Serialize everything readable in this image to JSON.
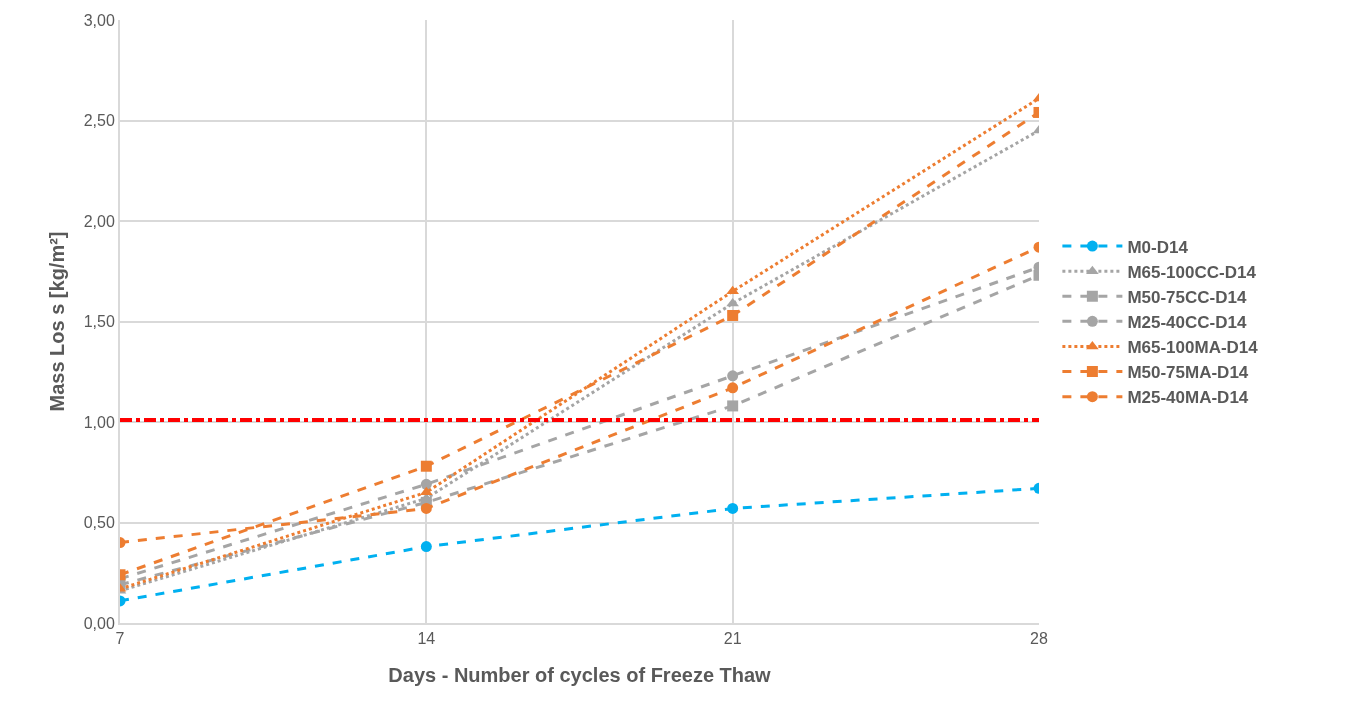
{
  "chart_data": {
    "type": "line",
    "xlabel": "Days - Number of cycles of Freeze Thaw",
    "ylabel": "Mass Los s [kg/m²]",
    "x": [
      7,
      14,
      21,
      28
    ],
    "series": [
      {
        "name": "M0-D14",
        "color": "#00b0f0",
        "marker": "circle",
        "line_style": "dashed",
        "values": [
          0.11,
          0.38,
          0.57,
          0.67
        ]
      },
      {
        "name": "M65-100CC-D14",
        "color": "#a5a5a5",
        "marker": "triangle",
        "line_style": "dotted",
        "values": [
          0.16,
          0.62,
          1.59,
          2.45
        ]
      },
      {
        "name": "M50-75CC-D14",
        "color": "#a5a5a5",
        "marker": "square",
        "line_style": "dashed",
        "values": [
          0.19,
          0.6,
          1.08,
          1.73
        ]
      },
      {
        "name": "M25-40CC-D14",
        "color": "#a5a5a5",
        "marker": "circle",
        "line_style": "dashed",
        "values": [
          0.22,
          0.69,
          1.23,
          1.77
        ]
      },
      {
        "name": "M65-100MA-D14",
        "color": "#ed7d31",
        "marker": "triangle",
        "line_style": "dotted",
        "values": [
          0.17,
          0.65,
          1.65,
          2.61
        ]
      },
      {
        "name": "M50-75MA-D14",
        "color": "#ed7d31",
        "marker": "square",
        "line_style": "dashed",
        "values": [
          0.24,
          0.78,
          1.53,
          2.54
        ]
      },
      {
        "name": "M25-40MA-D14",
        "color": "#ed7d31",
        "marker": "circle",
        "line_style": "dashed",
        "values": [
          0.4,
          0.57,
          1.17,
          1.87
        ]
      }
    ],
    "xlim": [
      7,
      28
    ],
    "xticks": [
      7,
      14,
      21,
      28
    ],
    "ylim": [
      0,
      3
    ],
    "yticks": [
      {
        "value": 0,
        "label": "0,00"
      },
      {
        "value": 0.5,
        "label": "0,50"
      },
      {
        "value": 1,
        "label": "1,00"
      },
      {
        "value": 1.5,
        "label": "1,50"
      },
      {
        "value": 2,
        "label": "2,00"
      },
      {
        "value": 2.5,
        "label": "2,50"
      },
      {
        "value": 3,
        "label": "3,00"
      }
    ],
    "ref_lines": [
      {
        "axis": "y",
        "value": 1.01,
        "color": "#ff0000",
        "line_style": "dashed"
      }
    ],
    "grid": true,
    "legend": "right"
  }
}
